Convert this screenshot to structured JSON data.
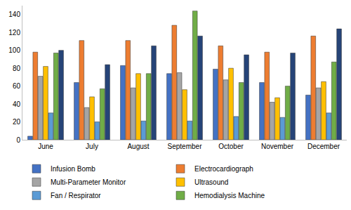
{
  "chart_data": {
    "type": "bar",
    "categories": [
      "June",
      "July",
      "August",
      "September",
      "October",
      "November",
      "December"
    ],
    "series": [
      {
        "name": "Infusion Bomb",
        "color": "#4472c4",
        "values": [
          4,
          64,
          83,
          74,
          79,
          64,
          50
        ]
      },
      {
        "name": "Electrocardiograph",
        "color": "#ed7d31",
        "values": [
          98,
          111,
          111,
          128,
          105,
          98,
          116
        ]
      },
      {
        "name": "Multi-Parameter Monitor",
        "color": "#a5a5a5",
        "values": [
          71,
          36,
          58,
          75,
          67,
          42,
          58
        ]
      },
      {
        "name": "Ultrasound",
        "color": "#ffc000",
        "values": [
          82,
          48,
          74,
          56,
          80,
          47,
          65
        ]
      },
      {
        "name": "Fan / Respirator",
        "color": "#5b9bd5",
        "values": [
          30,
          20,
          21,
          21,
          26,
          25,
          30
        ]
      },
      {
        "name": "Hemodialysis Machine",
        "color": "#70ad47",
        "values": [
          97,
          57,
          74,
          144,
          64,
          60,
          87
        ]
      },
      {
        "color": "#264478",
        "values": [
          100,
          84,
          105,
          116,
          95,
          97,
          124
        ]
      }
    ],
    "ylim": [
      0,
      150
    ],
    "yticks": [
      0,
      20,
      40,
      60,
      80,
      100,
      120,
      140
    ],
    "grid": false,
    "legend": "bottom"
  }
}
